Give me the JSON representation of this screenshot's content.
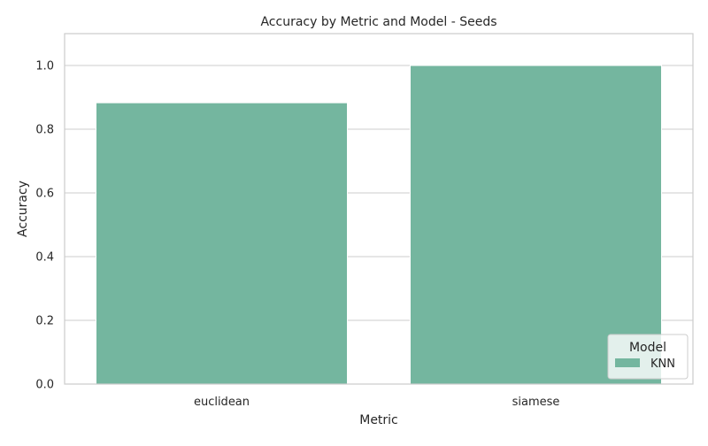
{
  "chart_data": {
    "type": "bar",
    "title": "Accuracy by Metric and Model - Seeds",
    "xlabel": "Metric",
    "ylabel": "Accuracy",
    "categories": [
      "euclidean",
      "siamese"
    ],
    "series": [
      {
        "name": "KNN",
        "values": [
          0.883,
          1.0
        ],
        "color": "#74b69f"
      }
    ],
    "ylim": [
      0,
      1.1
    ],
    "yticks": [
      "0.0",
      "0.2",
      "0.4",
      "0.6",
      "0.8",
      "1.0"
    ],
    "grid": true,
    "legend": {
      "title": "Model",
      "placement": "bottom-right"
    }
  },
  "colors": {
    "grid": "#cccccc",
    "axes_edge": "#cccccc",
    "text": "#262626"
  }
}
